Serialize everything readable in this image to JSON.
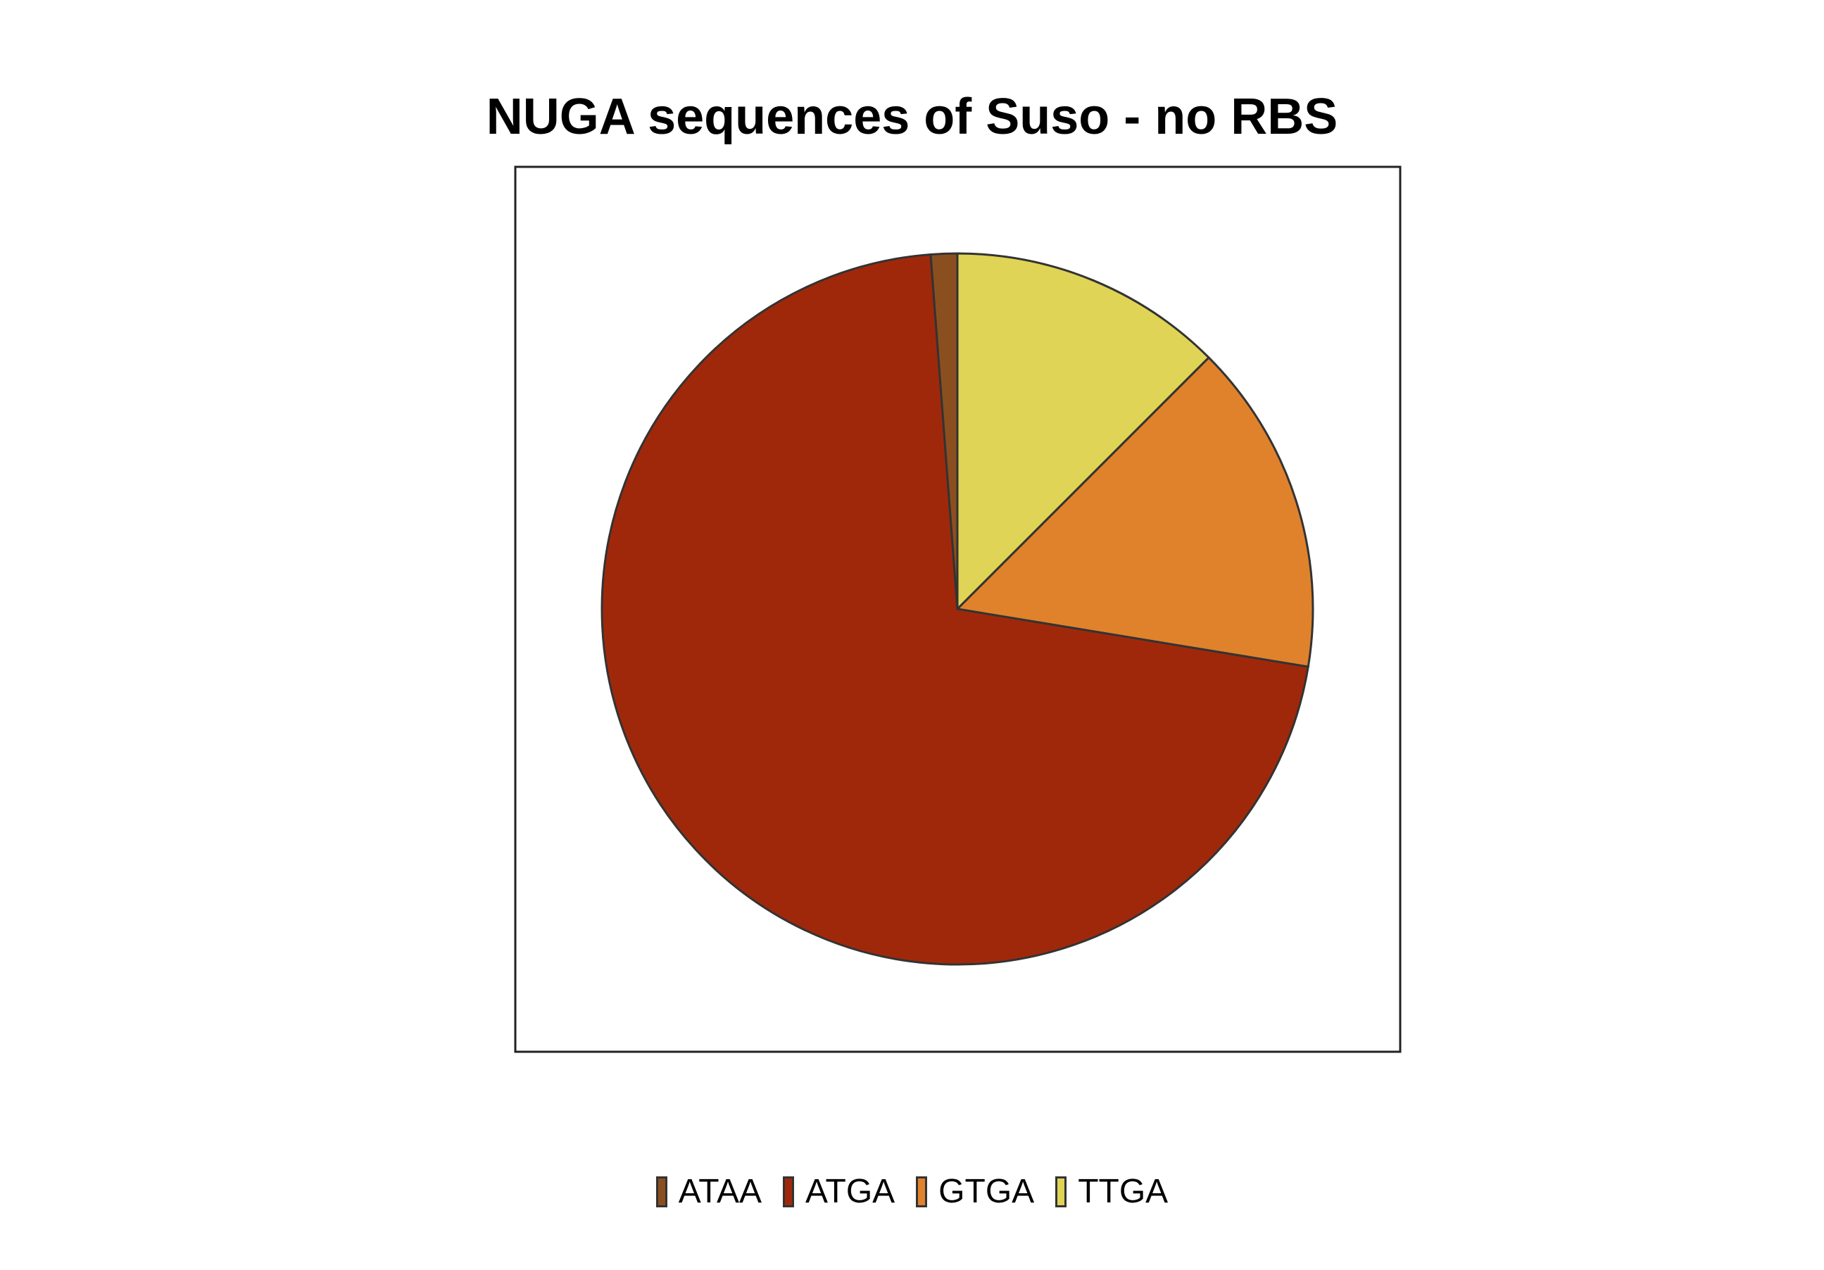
{
  "chart_data": {
    "type": "pie",
    "title": "NUGA sequences of Suso - no RBS",
    "categories": [
      "ATAA",
      "ATGA",
      "GTGA",
      "TTGA"
    ],
    "values": [
      1.2,
      71.2,
      15.1,
      12.5
    ],
    "unit": "percent",
    "colors": [
      "#8b4f1f",
      "#a0280a",
      "#e0822c",
      "#dfd455"
    ],
    "start_angle_deg": 0,
    "direction": "counterclockwise",
    "slice_order_from_top": [
      "TTGA",
      "GTGA",
      "ATGA",
      "ATAA"
    ],
    "legend": {
      "position": "bottom",
      "entries": [
        "ATAA",
        "ATGA",
        "GTGA",
        "TTGA"
      ]
    },
    "xlabel": "",
    "ylabel": "",
    "grid": false,
    "panel_border": true
  }
}
